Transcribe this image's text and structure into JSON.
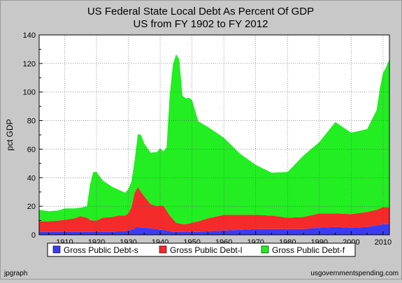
{
  "chart_data": {
    "type": "area",
    "stacked": true,
    "title": "US Federal State Local Debt As Percent Of GDP",
    "subtitle": "US from FY 1902 to FY 2012",
    "xlabel": "",
    "ylabel": "pct GDP",
    "xlim": [
      1902,
      2012
    ],
    "ylim": [
      0,
      140
    ],
    "x_ticks": [
      1910,
      1920,
      1930,
      1940,
      1950,
      1960,
      1970,
      1980,
      1990,
      2000,
      2010
    ],
    "y_ticks": [
      0,
      20,
      40,
      60,
      80,
      100,
      120,
      140
    ],
    "grid": true,
    "legend_position": "bottom",
    "x": [
      1902,
      1905,
      1908,
      1910,
      1913,
      1915,
      1917,
      1918,
      1919,
      1920,
      1922,
      1925,
      1927,
      1929,
      1930,
      1931,
      1932,
      1933,
      1934,
      1935,
      1937,
      1939,
      1940,
      1941,
      1942,
      1943,
      1944,
      1945,
      1946,
      1947,
      1948,
      1949,
      1950,
      1952,
      1955,
      1960,
      1965,
      1970,
      1975,
      1980,
      1985,
      1990,
      1995,
      2000,
      2005,
      2008,
      2009,
      2010,
      2011,
      2012
    ],
    "series": [
      {
        "name": "Gross Public Debt-s",
        "color": "#3b3bf5",
        "values": [
          2,
          2,
          2,
          2,
          2,
          2,
          2,
          2,
          2,
          2,
          2,
          2,
          2.5,
          2.5,
          3,
          3.5,
          4.5,
          5.5,
          5,
          5,
          4.5,
          4,
          3.5,
          3.5,
          3,
          2.5,
          2,
          2,
          2,
          2,
          2,
          2,
          2,
          2,
          2.5,
          3,
          3.5,
          4,
          4,
          4,
          4,
          5,
          5.5,
          5,
          5.5,
          6.5,
          7,
          7.5,
          7.5,
          7.5
        ]
      },
      {
        "name": "Gross Public Debt-l",
        "color": "#f52a2a",
        "values": [
          7.5,
          7.5,
          8,
          8.5,
          9.5,
          11,
          10,
          8.5,
          8,
          8,
          10,
          10.5,
          11,
          11,
          12,
          16,
          25,
          28,
          25,
          22,
          17,
          16,
          17,
          17,
          14,
          11,
          9,
          6.5,
          6,
          5.5,
          5.5,
          6,
          6.5,
          7.5,
          9,
          11,
          10.5,
          10,
          9.5,
          8,
          8.5,
          10,
          9.5,
          9.5,
          10.5,
          11,
          11.5,
          12,
          12,
          11.5
        ]
      },
      {
        "name": "Gross Public Debt-f",
        "color": "#22ee22",
        "values": [
          8,
          7,
          7,
          8,
          7,
          6,
          8,
          25,
          34,
          34,
          26,
          21,
          18,
          16,
          17,
          18,
          23,
          37,
          40,
          37,
          36,
          38,
          40,
          38,
          44,
          84,
          108,
          118,
          115,
          90,
          88,
          88,
          86,
          70,
          64,
          54,
          43,
          35,
          30,
          32,
          43,
          50,
          64,
          57,
          58,
          70,
          84,
          94,
          98,
          104
        ]
      }
    ],
    "footer_left": "jpgraph",
    "footer_right": "usgovernmentspending.com"
  }
}
